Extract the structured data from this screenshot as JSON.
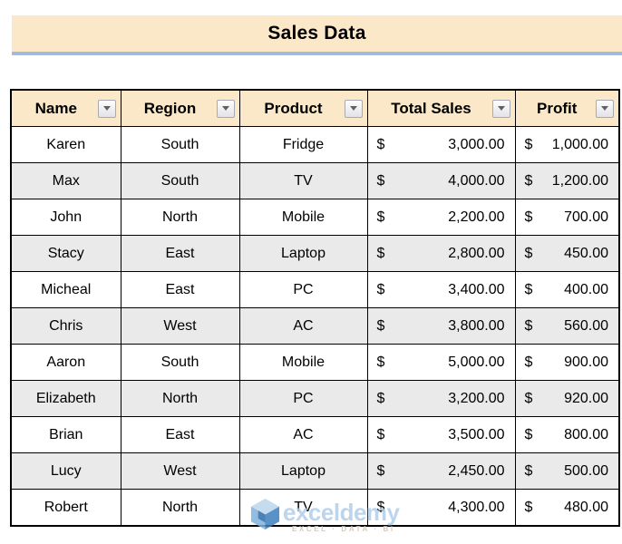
{
  "banner": {
    "title": "Sales Data"
  },
  "table": {
    "columns": [
      {
        "id": "name",
        "label": "Name"
      },
      {
        "id": "region",
        "label": "Region"
      },
      {
        "id": "product",
        "label": "Product"
      },
      {
        "id": "total_sales",
        "label": "Total Sales"
      },
      {
        "id": "profit",
        "label": "Profit"
      }
    ],
    "currency_symbol": "$",
    "rows": [
      {
        "name": "Karen",
        "region": "South",
        "product": "Fridge",
        "total_sales": "3,000.00",
        "profit": "1,000.00"
      },
      {
        "name": "Max",
        "region": "South",
        "product": "TV",
        "total_sales": "4,000.00",
        "profit": "1,200.00"
      },
      {
        "name": "John",
        "region": "North",
        "product": "Mobile",
        "total_sales": "2,200.00",
        "profit": "700.00"
      },
      {
        "name": "Stacy",
        "region": "East",
        "product": "Laptop",
        "total_sales": "2,800.00",
        "profit": "450.00"
      },
      {
        "name": "Micheal",
        "region": "East",
        "product": "PC",
        "total_sales": "3,400.00",
        "profit": "400.00"
      },
      {
        "name": "Chris",
        "region": "West",
        "product": "AC",
        "total_sales": "3,800.00",
        "profit": "560.00"
      },
      {
        "name": "Aaron",
        "region": "South",
        "product": "Mobile",
        "total_sales": "5,000.00",
        "profit": "900.00"
      },
      {
        "name": "Elizabeth",
        "region": "North",
        "product": "PC",
        "total_sales": "3,200.00",
        "profit": "920.00"
      },
      {
        "name": "Brian",
        "region": "East",
        "product": "AC",
        "total_sales": "3,500.00",
        "profit": "800.00"
      },
      {
        "name": "Lucy",
        "region": "West",
        "product": "Laptop",
        "total_sales": "2,450.00",
        "profit": "500.00"
      },
      {
        "name": "Robert",
        "region": "North",
        "product": "TV",
        "total_sales": "4,300.00",
        "profit": "480.00"
      }
    ]
  },
  "colors": {
    "banner_bg": "#FBE8C8",
    "banner_underline": "#A4BADC",
    "header_bg": "#FBE8C8",
    "row_alt_bg": "#EAEAEA",
    "grid_border": "#000000",
    "watermark_blue": "#B2CEE9"
  },
  "watermark": {
    "brand": "exceldemy",
    "tagline": "EXCEL · DATA · BI"
  }
}
